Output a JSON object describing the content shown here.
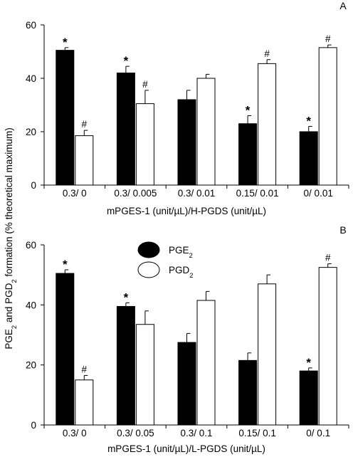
{
  "y_axis_label": "PGE₂ and PGD₂ formation (% theoretical maximum)",
  "legend": [
    {
      "label": "PGE₂",
      "fill": "#000000"
    },
    {
      "label": "PGD₂",
      "fill": "#ffffff"
    }
  ],
  "chart_data": [
    {
      "type": "bar",
      "panel_label": "A",
      "xlabel": "mPGES-1 (unit/µL)/H-PGDS (unit/µL)",
      "ylabel": "PGE₂ and PGD₂ formation (% theoretical maximum)",
      "ylim": [
        0,
        60
      ],
      "yticks": [
        0,
        20,
        40,
        60
      ],
      "categories": [
        "0.3/ 0",
        "0.3/ 0.005",
        "0.3/ 0.01",
        "0.15/ 0.01",
        "0/ 0.01"
      ],
      "series": [
        {
          "name": "PGE₂",
          "color": "#000000",
          "values": [
            50.5,
            42,
            32,
            23,
            20
          ],
          "errors": [
            1,
            2.5,
            3.5,
            3,
            2
          ],
          "markers": [
            "*",
            "*",
            "",
            "*",
            "*"
          ]
        },
        {
          "name": "PGD₂",
          "color": "#ffffff",
          "values": [
            18.5,
            30.5,
            40,
            45.5,
            51.5
          ],
          "errors": [
            2,
            5,
            1.5,
            1.5,
            1
          ],
          "markers": [
            "#",
            "#",
            "",
            "#",
            "#"
          ]
        }
      ],
      "grid": false,
      "legend": "none"
    },
    {
      "type": "bar",
      "panel_label": "B",
      "xlabel": "mPGES-1 (unit/µL)/L-PGDS (unit/µL)",
      "ylabel": "PGE₂ and PGD₂ formation (% theoretical maximum)",
      "ylim": [
        0,
        60
      ],
      "yticks": [
        0,
        20,
        40,
        60
      ],
      "categories": [
        "0.3/ 0",
        "0.3/ 0.05",
        "0.3/ 0.1",
        "0.15/ 0.1",
        "0/ 0.1"
      ],
      "series": [
        {
          "name": "PGE₂",
          "color": "#000000",
          "values": [
            50.5,
            39.5,
            27.5,
            21.5,
            18
          ],
          "errors": [
            1.2,
            1.2,
            3,
            2.5,
            1
          ],
          "markers": [
            "*",
            "*",
            "",
            "",
            "*"
          ]
        },
        {
          "name": "PGD₂",
          "color": "#ffffff",
          "values": [
            15,
            33.5,
            41.5,
            47,
            52.5
          ],
          "errors": [
            1.5,
            4.5,
            3,
            3,
            1.2
          ],
          "markers": [
            "#",
            "",
            "",
            "",
            "#"
          ]
        }
      ],
      "grid": false,
      "legend": "top-left"
    }
  ]
}
